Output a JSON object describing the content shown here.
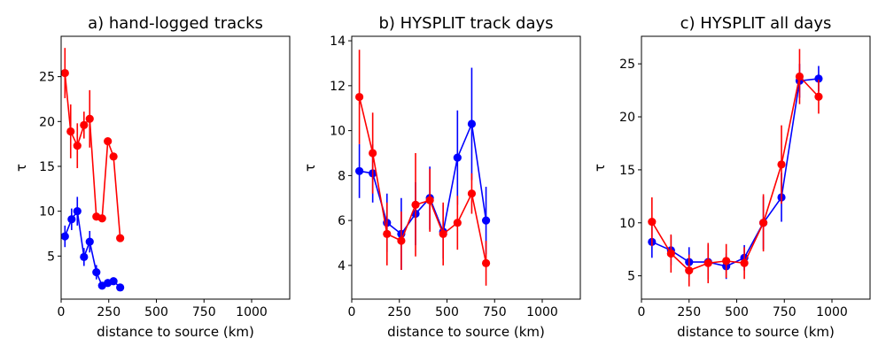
{
  "chart_data": [
    {
      "type": "line",
      "title": "a) hand-logged tracks",
      "xlabel": "distance to source (km)",
      "ylabel": "τ",
      "xlim": [
        0,
        1200
      ],
      "ylim": [
        0.2,
        29.5
      ],
      "xticks": [
        0,
        250,
        500,
        750,
        1000
      ],
      "yticks": [
        5,
        10,
        15,
        20,
        25
      ],
      "grid": false,
      "series": [
        {
          "name": "blue",
          "color": "#0000ff",
          "x": [
            20,
            55,
            85,
            120,
            150,
            185,
            215,
            245,
            275,
            310
          ],
          "y": [
            7.2,
            9.1,
            10.0,
            4.9,
            6.6,
            3.2,
            1.7,
            2.0,
            2.2,
            1.5
          ],
          "err": [
            1.2,
            1.2,
            1.6,
            1.0,
            1.2,
            0.8,
            0.4,
            0.4,
            0.4,
            0.3
          ]
        },
        {
          "name": "red",
          "color": "#ff0000",
          "x": [
            20,
            50,
            85,
            120,
            150,
            185,
            215,
            245,
            275,
            310
          ],
          "y": [
            25.4,
            18.9,
            17.3,
            19.6,
            20.3,
            9.4,
            9.2,
            17.8,
            16.1,
            7.0
          ],
          "err": [
            2.8,
            3.0,
            2.5,
            1.5,
            3.2,
            0.4,
            0.4,
            0.4,
            0.4,
            0.4
          ]
        }
      ]
    },
    {
      "type": "line",
      "title": "b) HYSPLIT track days",
      "xlabel": "distance to source (km)",
      "ylabel": "τ",
      "xlim": [
        0,
        1200
      ],
      "ylim": [
        2.5,
        14.2
      ],
      "xticks": [
        0,
        250,
        500,
        750,
        1000
      ],
      "yticks": [
        4,
        6,
        8,
        10,
        12,
        14
      ],
      "grid": false,
      "series": [
        {
          "name": "blue",
          "color": "#0000ff",
          "x": [
            40,
            110,
            185,
            260,
            335,
            410,
            480,
            555,
            630,
            705
          ],
          "y": [
            8.2,
            8.1,
            5.9,
            5.4,
            6.3,
            7.0,
            5.5,
            8.8,
            10.3,
            6.0
          ],
          "err": [
            1.2,
            1.3,
            1.3,
            1.6,
            1.4,
            1.4,
            1.2,
            2.1,
            2.5,
            1.5
          ]
        },
        {
          "name": "red",
          "color": "#ff0000",
          "x": [
            40,
            110,
            185,
            260,
            335,
            410,
            480,
            555,
            630,
            705
          ],
          "y": [
            11.5,
            9.0,
            5.4,
            5.1,
            6.7,
            6.9,
            5.4,
            5.9,
            7.2,
            4.1
          ],
          "err": [
            2.1,
            1.8,
            1.4,
            1.3,
            2.3,
            1.4,
            1.4,
            1.2,
            0.9,
            1.0
          ]
        }
      ]
    },
    {
      "type": "line",
      "title": "c) HYSPLIT all days",
      "xlabel": "distance to source (km)",
      "ylabel": "τ",
      "xlim": [
        0,
        1200
      ],
      "ylim": [
        2.8,
        27.6
      ],
      "xticks": [
        0,
        250,
        500,
        750,
        1000
      ],
      "yticks": [
        5,
        10,
        15,
        20,
        25
      ],
      "grid": false,
      "series": [
        {
          "name": "blue",
          "color": "#0000ff",
          "x": [
            55,
            155,
            250,
            350,
            445,
            540,
            640,
            735,
            830,
            930
          ],
          "y": [
            8.2,
            7.4,
            6.3,
            6.3,
            5.9,
            6.7,
            10.0,
            12.4,
            23.4,
            23.6
          ],
          "err": [
            1.5,
            1.4,
            1.4,
            1.6,
            1.2,
            1.2,
            2.5,
            2.3,
            1.6,
            1.2
          ]
        },
        {
          "name": "red",
          "color": "#ff0000",
          "x": [
            55,
            155,
            250,
            350,
            445,
            540,
            640,
            735,
            830,
            930
          ],
          "y": [
            10.1,
            7.1,
            5.5,
            6.2,
            6.4,
            6.2,
            10.0,
            15.5,
            23.8,
            21.9
          ],
          "err": [
            2.3,
            1.8,
            1.5,
            1.9,
            1.6,
            1.5,
            2.7,
            3.7,
            2.6,
            1.6
          ]
        }
      ]
    }
  ]
}
